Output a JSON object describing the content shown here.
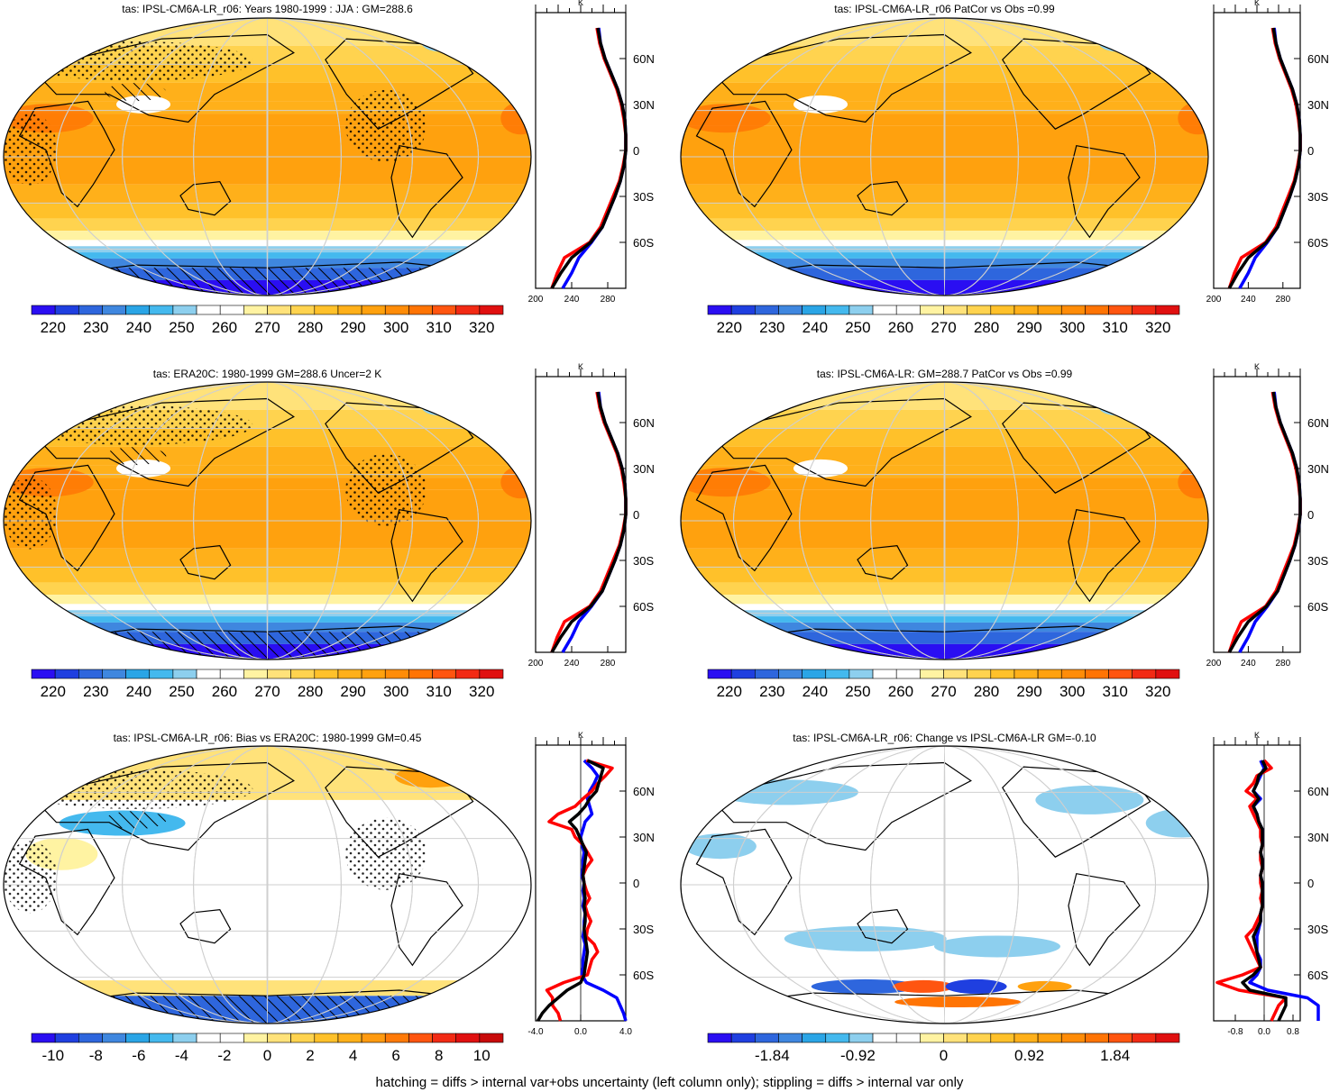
{
  "figure": {
    "footer": "hatching = diffs > internal var+obs uncertainty (left column only); stippling = diffs > internal var only"
  },
  "colors": {
    "absolute_scale": [
      "#2a0ef2",
      "#1f3fe0",
      "#2e66dd",
      "#3f87df",
      "#2aa5e6",
      "#44b9ee",
      "#8dcfee",
      "#ffffff",
      "#ffffff",
      "#fff3a2",
      "#ffe27a",
      "#ffd34f",
      "#ffc12a",
      "#ffb01a",
      "#ffa10e",
      "#ff8c08",
      "#ff7404",
      "#ff5510",
      "#f22a14",
      "#e01010"
    ],
    "bias_scale": [
      "#2a0ef2",
      "#1f3fe0",
      "#2e66dd",
      "#3f87df",
      "#2aa5e6",
      "#44b9ee",
      "#8dcfee",
      "#ffffff",
      "#ffffff",
      "#fff3a2",
      "#ffe27a",
      "#ffd34f",
      "#ffc12a",
      "#ffb01a",
      "#ff9a10",
      "#ff7a08",
      "#ff5510",
      "#f22a14",
      "#e01010",
      "#c80a0a"
    ],
    "model_line": "#ff0000",
    "obs_line": "#0000ff",
    "ens_line": "#000000"
  },
  "chart_data": [
    {
      "type": "heatmap",
      "title": "tas: IPSL-CM6A-LR_r06: Years 1980-1999 : JJA : GM=288.6",
      "colorbar": {
        "labels": [
          "220",
          "230",
          "240",
          "250",
          "260",
          "270",
          "280",
          "290",
          "300",
          "310",
          "320"
        ],
        "min": 215,
        "max": 325
      },
      "map_theme": "absolute",
      "markings": "hatch+stipple",
      "profile": {
        "x_ticks": [
          "200",
          "240",
          "280"
        ],
        "xlim": [
          200,
          300
        ],
        "x_unit": "K",
        "y_ticks": [
          "60N",
          "30N",
          "0",
          "30S",
          "60S"
        ],
        "ylim": [
          -90,
          90
        ],
        "lat": [
          80,
          70,
          60,
          50,
          40,
          30,
          20,
          10,
          0,
          -10,
          -20,
          -30,
          -40,
          -50,
          -60,
          -70,
          -80,
          -90
        ],
        "model": [
          268,
          271,
          276,
          283,
          290,
          295,
          298,
          300,
          300,
          297,
          293,
          286,
          279,
          272,
          260,
          232,
          224,
          218
        ],
        "obs": [
          270,
          272,
          277,
          284,
          291,
          296,
          299,
          300,
          300,
          298,
          294,
          288,
          281,
          274,
          262,
          248,
          240,
          230
        ],
        "ens": [
          269,
          272,
          277,
          284,
          291,
          296,
          299,
          300,
          300,
          298,
          294,
          288,
          281,
          274,
          261,
          240,
          228,
          218
        ]
      }
    },
    {
      "type": "heatmap",
      "title": "tas: IPSL-CM6A-LR_r06 PatCor vs Obs =0.99",
      "colorbar": {
        "labels": [
          "220",
          "230",
          "240",
          "250",
          "260",
          "270",
          "280",
          "290",
          "300",
          "310",
          "320"
        ],
        "min": 215,
        "max": 325
      },
      "map_theme": "absolute",
      "markings": "none",
      "profile": {
        "x_ticks": [
          "200",
          "240",
          "280"
        ],
        "xlim": [
          200,
          300
        ],
        "x_unit": "K",
        "y_ticks": [
          "60N",
          "30N",
          "0",
          "30S",
          "60S"
        ],
        "ylim": [
          -90,
          90
        ],
        "lat": [
          80,
          70,
          60,
          50,
          40,
          30,
          20,
          10,
          0,
          -10,
          -20,
          -30,
          -40,
          -50,
          -60,
          -70,
          -80,
          -90
        ],
        "model": [
          268,
          271,
          276,
          283,
          290,
          295,
          298,
          300,
          300,
          297,
          293,
          286,
          279,
          272,
          260,
          232,
          224,
          218
        ],
        "obs": [
          270,
          272,
          277,
          284,
          291,
          296,
          299,
          300,
          300,
          298,
          294,
          288,
          281,
          274,
          262,
          248,
          240,
          230
        ],
        "ens": [
          269,
          272,
          277,
          284,
          291,
          296,
          299,
          300,
          300,
          298,
          294,
          288,
          281,
          274,
          261,
          240,
          228,
          218
        ]
      }
    },
    {
      "type": "heatmap",
      "title": "tas: ERA20C: 1980-1999 GM=288.6 Uncer=2 K",
      "colorbar": {
        "labels": [
          "220",
          "230",
          "240",
          "250",
          "260",
          "270",
          "280",
          "290",
          "300",
          "310",
          "320"
        ],
        "min": 215,
        "max": 325
      },
      "map_theme": "absolute",
      "markings": "hatch+stipple",
      "profile": {
        "x_ticks": [
          "200",
          "240",
          "280"
        ],
        "xlim": [
          200,
          300
        ],
        "x_unit": "K",
        "y_ticks": [
          "60N",
          "30N",
          "0",
          "30S",
          "60S"
        ],
        "ylim": [
          -90,
          90
        ],
        "lat": [
          80,
          70,
          60,
          50,
          40,
          30,
          20,
          10,
          0,
          -10,
          -20,
          -30,
          -40,
          -50,
          -60,
          -70,
          -80,
          -90
        ],
        "model": [
          268,
          271,
          276,
          283,
          290,
          295,
          298,
          300,
          300,
          297,
          293,
          286,
          279,
          272,
          260,
          232,
          224,
          218
        ],
        "obs": [
          270,
          272,
          277,
          284,
          291,
          296,
          299,
          300,
          300,
          298,
          294,
          288,
          281,
          274,
          262,
          248,
          240,
          230
        ],
        "ens": [
          269,
          272,
          277,
          284,
          291,
          296,
          299,
          300,
          300,
          298,
          294,
          288,
          281,
          274,
          261,
          240,
          228,
          218
        ]
      }
    },
    {
      "type": "heatmap",
      "title": "tas: IPSL-CM6A-LR: GM=288.7 PatCor vs Obs =0.99",
      "colorbar": {
        "labels": [
          "220",
          "230",
          "240",
          "250",
          "260",
          "270",
          "280",
          "290",
          "300",
          "310",
          "320"
        ],
        "min": 215,
        "max": 325
      },
      "map_theme": "absolute",
      "markings": "none",
      "profile": {
        "x_ticks": [
          "200",
          "240",
          "280"
        ],
        "xlim": [
          200,
          300
        ],
        "x_unit": "K",
        "y_ticks": [
          "60N",
          "30N",
          "0",
          "30S",
          "60S"
        ],
        "ylim": [
          -90,
          90
        ],
        "lat": [
          80,
          70,
          60,
          50,
          40,
          30,
          20,
          10,
          0,
          -10,
          -20,
          -30,
          -40,
          -50,
          -60,
          -70,
          -80,
          -90
        ],
        "model": [
          268,
          271,
          276,
          283,
          290,
          295,
          298,
          300,
          300,
          297,
          293,
          286,
          279,
          272,
          260,
          232,
          224,
          218
        ],
        "obs": [
          270,
          272,
          277,
          284,
          291,
          296,
          299,
          300,
          300,
          298,
          294,
          288,
          281,
          274,
          262,
          248,
          240,
          230
        ],
        "ens": [
          269,
          272,
          277,
          284,
          291,
          296,
          299,
          300,
          300,
          298,
          294,
          288,
          281,
          274,
          261,
          240,
          228,
          218
        ]
      }
    },
    {
      "type": "heatmap",
      "title": "tas: IPSL-CM6A-LR_r06: Bias vs ERA20C: 1980-1999 GM=0.45",
      "colorbar": {
        "labels": [
          "-10",
          "-8",
          "-6",
          "-4",
          "-2",
          "0",
          "2",
          "4",
          "6",
          "8",
          "10"
        ],
        "min": -11,
        "max": 11
      },
      "map_theme": "bias",
      "markings": "hatch+stipple",
      "profile": {
        "x_ticks": [
          "-4.0",
          "0.0",
          "4.0"
        ],
        "xlim": [
          -4,
          4
        ],
        "x_unit": "K",
        "y_ticks": [
          "60N",
          "30N",
          "0",
          "30S",
          "60S"
        ],
        "ylim": [
          -90,
          90
        ],
        "lat": [
          80,
          75,
          70,
          65,
          60,
          55,
          50,
          45,
          40,
          35,
          30,
          25,
          20,
          15,
          10,
          5,
          0,
          -5,
          -10,
          -15,
          -20,
          -25,
          -30,
          -35,
          -40,
          -45,
          -50,
          -55,
          -60,
          -65,
          -70,
          -75,
          -80,
          -85,
          -90
        ],
        "model": [
          0.5,
          2.8,
          2.2,
          1.5,
          1.0,
          0.2,
          -0.5,
          -2.0,
          -2.8,
          -0.8,
          -0.5,
          0.2,
          0.6,
          1.0,
          0.5,
          0.2,
          0.3,
          0.5,
          0.8,
          0.4,
          0.6,
          0.9,
          0.6,
          0.5,
          1.2,
          1.5,
          1.0,
          0.8,
          0.6,
          -1.5,
          -3.0,
          -2.5,
          -2.5,
          -2.0,
          -1.8
        ],
        "obs": [
          0.3,
          1.0,
          1.5,
          1.2,
          0.8,
          0.6,
          0.8,
          1.0,
          0.4,
          0.2,
          0.0,
          0.1,
          0.3,
          0.2,
          0.2,
          0.1,
          0.3,
          0.2,
          0.3,
          0.2,
          0.4,
          0.3,
          0.3,
          0.2,
          0.4,
          0.3,
          0.2,
          0.2,
          0.1,
          0.5,
          2.0,
          3.2,
          3.5,
          3.8,
          4.0
        ],
        "ens": [
          0.6,
          2.0,
          1.8,
          1.6,
          1.4,
          0.8,
          0.4,
          -0.2,
          -1.0,
          -0.4,
          -0.1,
          0.2,
          0.5,
          0.4,
          0.3,
          0.2,
          0.3,
          0.3,
          0.4,
          0.3,
          0.4,
          0.4,
          0.3,
          0.4,
          0.5,
          0.6,
          0.5,
          0.4,
          0.3,
          0.0,
          -1.2,
          -2.0,
          -2.8,
          -3.4,
          -3.8
        ]
      }
    },
    {
      "type": "heatmap",
      "title": "tas: IPSL-CM6A-LR_r06: Change vs IPSL-CM6A-LR GM=-0.10",
      "colorbar": {
        "labels": [
          "-1.84",
          "-0.92",
          "0",
          "0.92",
          "1.84"
        ],
        "min": -2.53,
        "max": 2.53
      },
      "map_theme": "change",
      "markings": "none",
      "profile": {
        "x_ticks": [
          "-0.8",
          "0.0",
          "0.8"
        ],
        "xlim": [
          -1.4,
          1.0
        ],
        "x_unit": "K",
        "y_ticks": [
          "60N",
          "30N",
          "0",
          "30S",
          "60S"
        ],
        "ylim": [
          -90,
          90
        ],
        "lat": [
          80,
          75,
          70,
          65,
          60,
          55,
          50,
          45,
          40,
          35,
          30,
          25,
          20,
          15,
          10,
          5,
          0,
          -5,
          -10,
          -15,
          -20,
          -25,
          -30,
          -35,
          -40,
          -45,
          -50,
          -55,
          -60,
          -65,
          -70,
          -75,
          -80,
          -85,
          -90
        ],
        "model": [
          0.0,
          0.2,
          -0.2,
          -0.3,
          -0.5,
          -0.2,
          -0.4,
          -0.3,
          -0.2,
          -0.1,
          -0.1,
          -0.05,
          -0.1,
          -0.1,
          -0.05,
          -0.1,
          -0.1,
          -0.05,
          -0.1,
          -0.05,
          -0.1,
          -0.2,
          -0.3,
          -0.5,
          -0.4,
          -0.3,
          -0.2,
          -0.1,
          -0.6,
          -1.3,
          -0.7,
          0.6,
          0.4,
          0.3,
          0.2
        ],
        "obs": [
          -0.1,
          0.0,
          -0.1,
          -0.2,
          -0.3,
          -0.1,
          -0.3,
          -0.2,
          -0.15,
          -0.05,
          -0.05,
          -0.05,
          -0.1,
          -0.05,
          -0.05,
          -0.1,
          -0.05,
          -0.05,
          -0.05,
          -0.05,
          -0.1,
          -0.1,
          -0.15,
          -0.2,
          -0.2,
          -0.2,
          -0.1,
          -0.1,
          -0.2,
          -0.4,
          0.1,
          1.2,
          1.5,
          1.5,
          1.5
        ],
        "ens": [
          -0.05,
          0.05,
          -0.15,
          -0.2,
          -0.3,
          -0.15,
          -0.3,
          -0.2,
          -0.15,
          -0.05,
          -0.05,
          -0.05,
          -0.1,
          -0.05,
          -0.05,
          -0.1,
          -0.05,
          -0.05,
          -0.05,
          -0.05,
          -0.1,
          -0.1,
          -0.2,
          -0.3,
          -0.25,
          -0.2,
          -0.15,
          -0.1,
          -0.3,
          -0.6,
          -0.4,
          0.6,
          0.6,
          0.5,
          0.4
        ]
      }
    }
  ]
}
